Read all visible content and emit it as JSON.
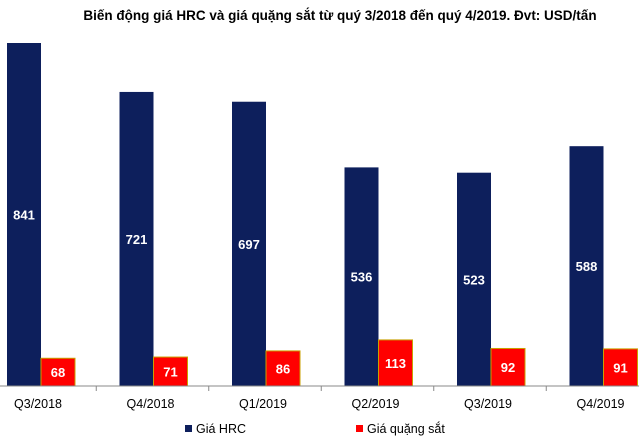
{
  "chart_data": {
    "type": "bar",
    "title": "Biến động giá HRC và giá quặng sắt từ quý 3/2018 đến quý 4/2019. Đvt: USD/tấn",
    "categories": [
      "Q3/2018",
      "Q4/2018",
      "Q1/2019",
      "Q2/2019",
      "Q3/2019",
      "Q4/2019"
    ],
    "series": [
      {
        "name": "Giá HRC",
        "values": [
          841,
          721,
          697,
          536,
          523,
          588
        ],
        "color": "#0d1f5c"
      },
      {
        "name": "Giá quặng sắt",
        "values": [
          68,
          71,
          86,
          113,
          92,
          91
        ],
        "color": "#ff0000",
        "border": "#c8a000"
      }
    ],
    "ylim": [
      0,
      841
    ],
    "grid": false,
    "y_axis_visible": false,
    "data_labels": "inside-center",
    "legend": "bottom"
  }
}
